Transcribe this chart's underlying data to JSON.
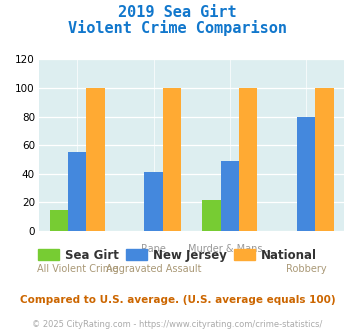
{
  "title_line1": "2019 Sea Girt",
  "title_line2": "Violent Crime Comparison",
  "top_labels": [
    "",
    "Rape",
    "Murder & Mans...",
    ""
  ],
  "bottom_labels": [
    "All Violent Crime",
    "Aggravated Assault",
    "",
    "Robbery"
  ],
  "sea_girt": [
    15,
    0,
    22,
    0
  ],
  "new_jersey": [
    55,
    41,
    49,
    80
  ],
  "national": [
    100,
    100,
    100,
    100
  ],
  "colors": {
    "sea_girt": "#77cc33",
    "new_jersey": "#4488dd",
    "national": "#ffaa33"
  },
  "ylim": [
    0,
    120
  ],
  "yticks": [
    0,
    20,
    40,
    60,
    80,
    100,
    120
  ],
  "background_color": "#ddeef0",
  "title_color": "#1177cc",
  "footer_text": "Compared to U.S. average. (U.S. average equals 100)",
  "credit_text": "© 2025 CityRating.com - https://www.cityrating.com/crime-statistics/",
  "legend_labels": [
    "Sea Girt",
    "New Jersey",
    "National"
  ],
  "top_label_color": "#999999",
  "bottom_label_color": "#aa9977",
  "footer_color": "#cc6600",
  "credit_color": "#aaaaaa"
}
